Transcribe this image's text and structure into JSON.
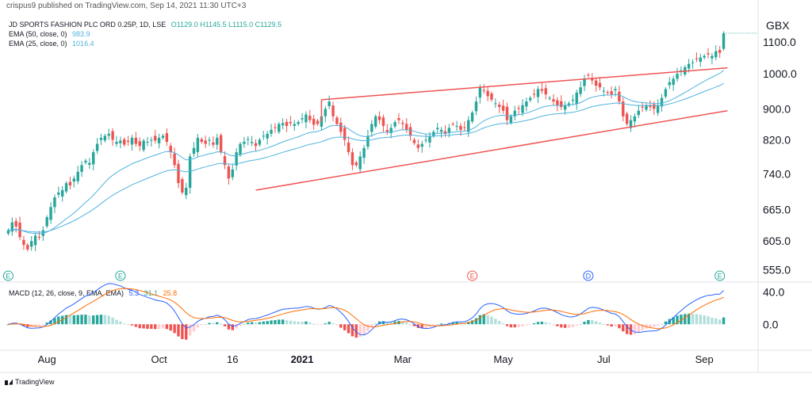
{
  "header": "crispus9 published on TradingView.com, Sep 14, 2021 11:30 UTC+3",
  "legend": {
    "symbol": "JD SPORTS FASHION PLC ORD 0.25P, 1D, LSE",
    "ohlc": "O1129.0  H1145.5  L1115.0  C1129.5",
    "ema50_label": "EMA (50, close, 0)",
    "ema50_value": "983.9",
    "ema25_label": "EMA (25, close, 0)",
    "ema25_value": "1016.4"
  },
  "macd_legend": {
    "label": "MACD (12, 26, close, 9, EMA, EMA)",
    "v1": "5.3",
    "v2": "31.1",
    "v3": "25.8"
  },
  "currency": "GBX",
  "brand": "TradingView",
  "colors": {
    "up": "#26a69a",
    "down": "#ef5350",
    "ema": "#4fb3de",
    "trend": "#f05454",
    "macd": "#2962ff",
    "signal": "#ff6d00"
  },
  "chart_data": {
    "type": "candlestick",
    "price_axis": {
      "ticks": [
        555.0,
        605.0,
        665.0,
        740.0,
        820.0,
        900.0,
        1000.0,
        1100.0
      ],
      "labels": [
        "555.0",
        "605.0",
        "665.0",
        "740.0",
        "820.0",
        "900.0",
        "1000.0",
        "1100.0"
      ],
      "ylim": [
        540,
        1190
      ],
      "scale": "log"
    },
    "macd_axis": {
      "ticks": [
        0.0,
        40.0
      ],
      "labels": [
        "0.0",
        "40.0"
      ],
      "ylim": [
        -30,
        50
      ]
    },
    "x_axis": {
      "labels": [
        "Aug",
        "Oct",
        "16",
        "2021",
        "Mar",
        "May",
        "Jul",
        "Sep"
      ],
      "positions": [
        10,
        39,
        58,
        76,
        102,
        128,
        154,
        180
      ]
    },
    "event_markers": [
      {
        "label": "E",
        "x": 0,
        "color": "#26a69a"
      },
      {
        "label": "E",
        "x": 29,
        "color": "#26a69a"
      },
      {
        "label": "E",
        "x": 120,
        "color": "#ef5350"
      },
      {
        "label": "D",
        "x": 150,
        "color": "#2962ff"
      },
      {
        "label": "E",
        "x": 184,
        "color": "#26a69a"
      }
    ],
    "trendlines": [
      {
        "name": "upper",
        "x1": 81,
        "y1": 925,
        "x2": 186,
        "y2": 1018
      },
      {
        "name": "lower",
        "x1": 64,
        "y1": 705,
        "x2": 186,
        "y2": 895
      },
      {
        "name": "spike",
        "x1": 81,
        "y1": 925,
        "x2": 81,
        "y2": 866
      }
    ],
    "closes": [
      625,
      640,
      632,
      612,
      598,
      590,
      605,
      615,
      612,
      625,
      650,
      670,
      690,
      700,
      705,
      720,
      715,
      730,
      745,
      760,
      770,
      765,
      790,
      810,
      825,
      830,
      835,
      820,
      815,
      818,
      808,
      815,
      825,
      810,
      805,
      818,
      815,
      820,
      818,
      825,
      830,
      815,
      790,
      760,
      720,
      700,
      710,
      780,
      800,
      825,
      815,
      810,
      820,
      808,
      825,
      790,
      760,
      730,
      750,
      790,
      810,
      815,
      822,
      815,
      805,
      820,
      830,
      835,
      845,
      850,
      860,
      862,
      855,
      862,
      860,
      865,
      875,
      885,
      870,
      858,
      860,
      880,
      900,
      920,
      880,
      860,
      840,
      820,
      790,
      760,
      760,
      780,
      800,
      830,
      860,
      880,
      870,
      855,
      840,
      850,
      865,
      870,
      860,
      845,
      830,
      812,
      800,
      810,
      820,
      830,
      840,
      850,
      845,
      835,
      850,
      860,
      855,
      845,
      850,
      870,
      890,
      920,
      960,
      950,
      935,
      925,
      915,
      905,
      895,
      870,
      880,
      895,
      900,
      910,
      920,
      930,
      940,
      955,
      950,
      940,
      930,
      920,
      910,
      905,
      910,
      915,
      925,
      945,
      960,
      985,
      995,
      980,
      965,
      960,
      950,
      945,
      940,
      955,
      920,
      880,
      860,
      870,
      880,
      895,
      905,
      910,
      905,
      900,
      910,
      930,
      955,
      975,
      985,
      1000,
      1010,
      1020,
      1030,
      1035,
      1045,
      1050,
      1055,
      1060,
      1055,
      1070,
      1065,
      1129.5
    ]
  }
}
